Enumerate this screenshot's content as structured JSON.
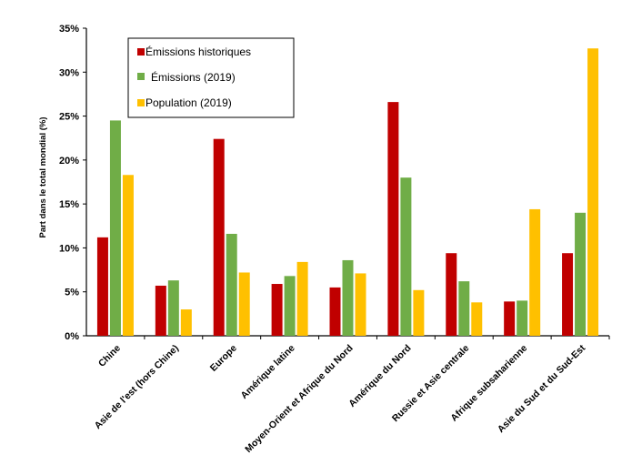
{
  "chart_data": {
    "type": "bar",
    "title": "",
    "xlabel": "",
    "ylabel": "Part dans le total mondial (%)",
    "ylim": [
      0,
      35
    ],
    "yticks": [
      "0%",
      "5%",
      "10%",
      "15%",
      "20%",
      "25%",
      "30%",
      "35%"
    ],
    "grid": false,
    "legend_position": "top-left",
    "categories": [
      "Chine",
      "Asie de l'est (hors Chine)",
      "Europe",
      "Amérique latine",
      "Moyen-Orient et Afrique du Nord",
      "Amérique du Nord",
      "Russie et Asie centrale",
      "Afrique subsaharienne",
      "Asie du Sud et du Sud-Est"
    ],
    "series": [
      {
        "name": "Émissions historiques",
        "color": "#c00000",
        "values": [
          11.2,
          5.7,
          22.4,
          5.9,
          5.5,
          26.6,
          9.4,
          3.9,
          9.4
        ]
      },
      {
        "name": "Émissions (2019)",
        "color": "#70ad47",
        "values": [
          24.5,
          6.3,
          11.6,
          6.8,
          8.6,
          18.0,
          6.2,
          4.0,
          14.0
        ]
      },
      {
        "name": "Population (2019)",
        "color": "#ffc000",
        "values": [
          18.3,
          3.0,
          7.2,
          8.4,
          7.1,
          5.2,
          3.8,
          14.4,
          32.7
        ]
      }
    ]
  }
}
